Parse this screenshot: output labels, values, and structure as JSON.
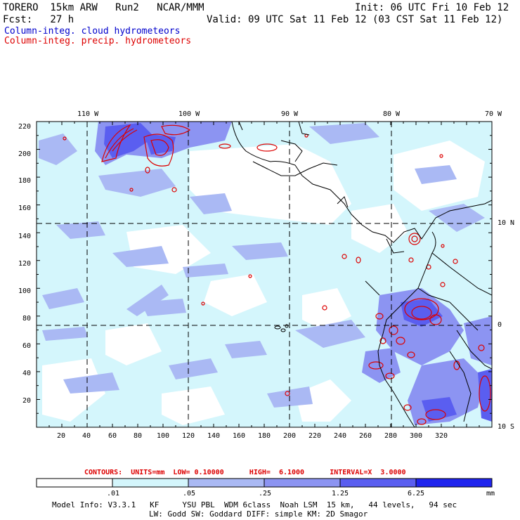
{
  "header": {
    "model_line": "TORERO  15km ARW   Run2   NCAR/MMM",
    "fcst_line": "Fcst:   27 h",
    "init_line": "Init: 06 UTC Fri 10 Feb 12",
    "valid_line": "Valid: 09 UTC Sat 11 Feb 12 (03 CST Sat 11 Feb 12)",
    "field1": "Column-integ. cloud hydrometeors",
    "field2": "Column-integ. precip. hydrometeors"
  },
  "colors": {
    "field1": "#0000cc",
    "field2": "#dd0000",
    "contour": "#dd0000",
    "shade_levels": [
      "#ffffff",
      "#d4f6fc",
      "#aab9f4",
      "#8c94f2",
      "#5a5ef0",
      "#1f24ee"
    ]
  },
  "map": {
    "x_ticks": [
      "20",
      "40",
      "60",
      "80",
      "100",
      "120",
      "140",
      "160",
      "180",
      "200",
      "220",
      "240",
      "260",
      "280",
      "300",
      "320"
    ],
    "y_ticks": [
      "220",
      "200",
      "180",
      "160",
      "140",
      "120",
      "100",
      "80",
      "60",
      "40",
      "20"
    ],
    "lon_labels": [
      "110 W",
      "100 W",
      "90 W",
      "80 W",
      "70 W"
    ],
    "lat_labels": [
      "10 N",
      "0",
      "10 S"
    ]
  },
  "contour_info": {
    "text": "CONTOURS:  UNITS=mm  LOW= 0.10000      HIGH=  6.1000      INTERVAL=X  3.0000"
  },
  "colorbar": {
    "labels": [
      ".01",
      ".05",
      ".25",
      "1.25",
      "6.25"
    ],
    "unit": "mm"
  },
  "model_info": {
    "line1": "Model Info: V3.3.1   KF     YSU PBL  WDM 6class  Noah LSM  15 km,   44 levels,   94 sec",
    "line2": "LW: Godd SW: Goddard DIFF: simple KM: 2D Smagor"
  }
}
